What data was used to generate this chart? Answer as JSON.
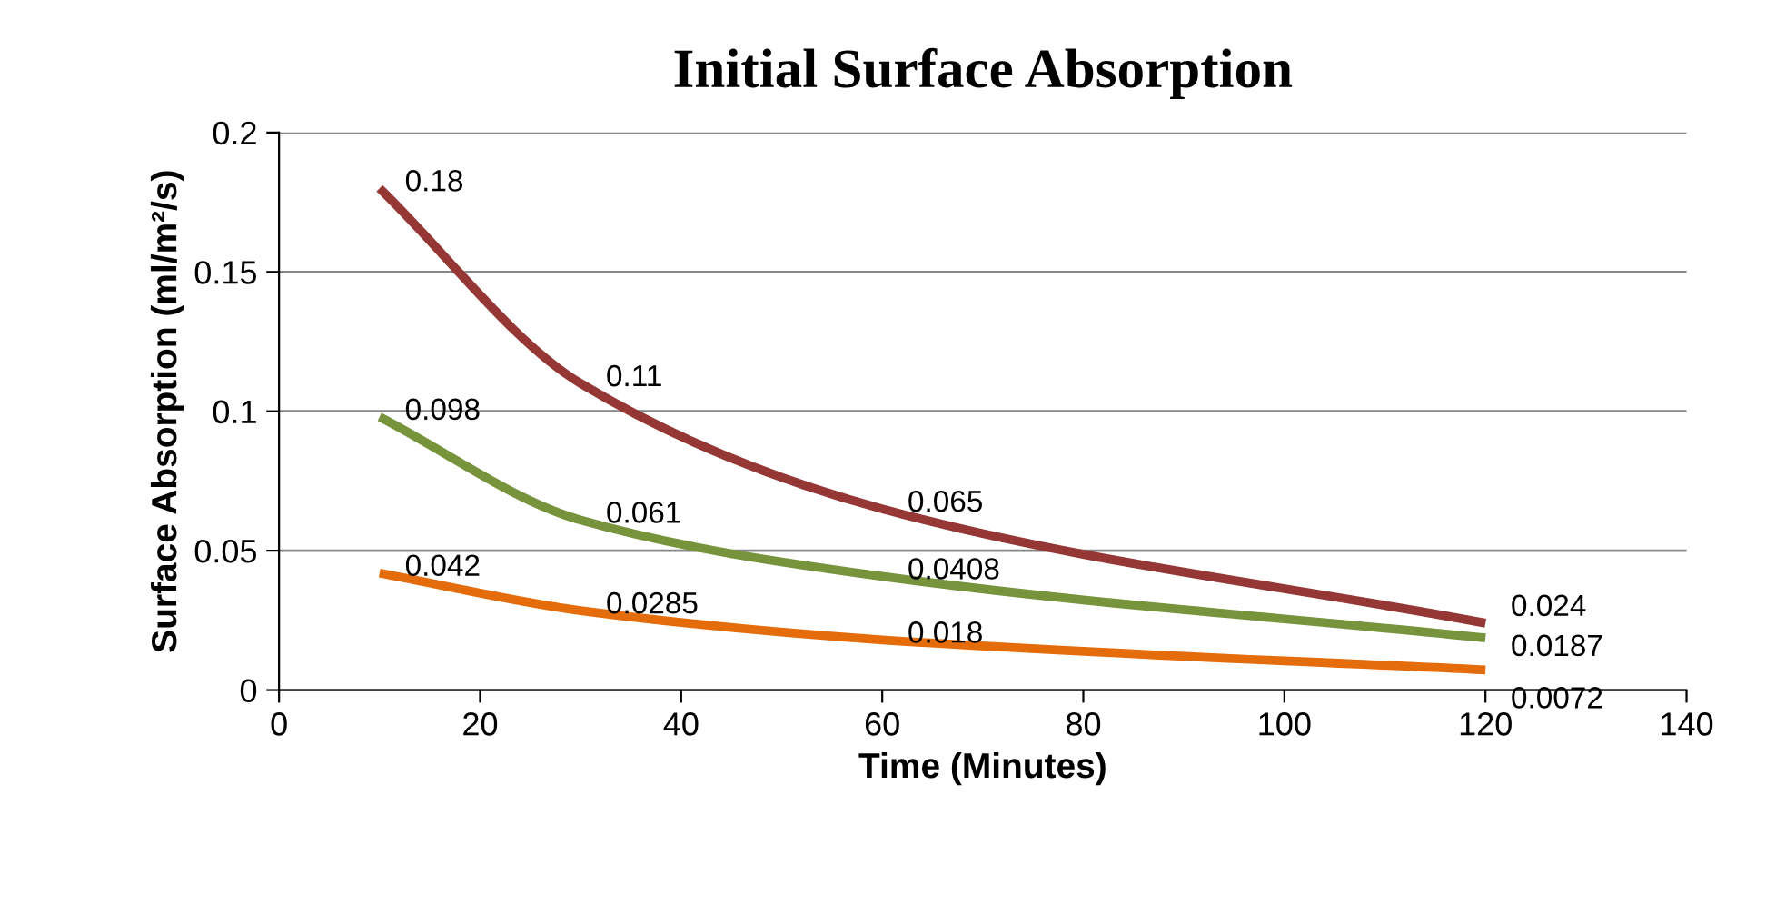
{
  "chart_data": {
    "type": "line",
    "title": "Initial Surface Absorption",
    "xlabel": "Time (Minutes)",
    "ylabel": "Surface Absorption (ml/m²/s)",
    "x": [
      10,
      30,
      60,
      120
    ],
    "series": [
      {
        "color": "#953735",
        "values": [
          0.18,
          0.11,
          0.065,
          0.024
        ]
      },
      {
        "color": "#77933c",
        "values": [
          0.098,
          0.061,
          0.0408,
          0.0187
        ]
      },
      {
        "color": "#e46c0a",
        "values": [
          0.042,
          0.0285,
          0.018,
          0.0072
        ]
      }
    ],
    "xlim": [
      0,
      140
    ],
    "xticks": [
      0,
      20,
      40,
      60,
      80,
      100,
      120,
      140
    ],
    "ylim": [
      0,
      0.2
    ],
    "yticks": [
      0,
      0.05,
      0.1,
      0.15,
      0.2
    ],
    "grid": "y",
    "legend": false,
    "marker": "none",
    "line_style": "solid",
    "data_labels": true
  }
}
